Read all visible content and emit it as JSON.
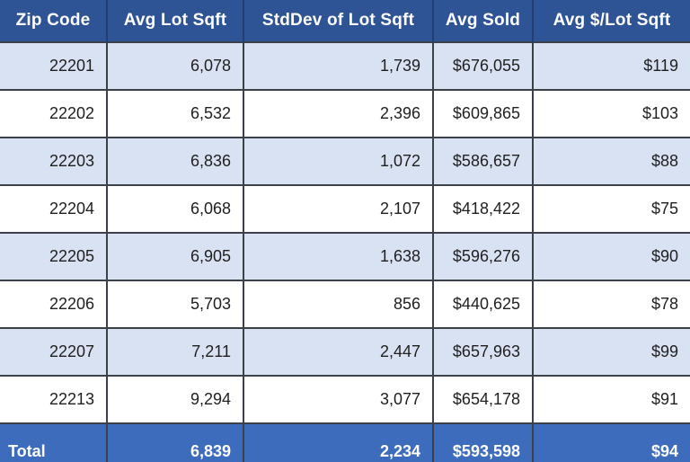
{
  "table": {
    "headers": [
      "Zip Code",
      "Avg Lot Sqft",
      "StdDev of Lot Sqft",
      "Avg Sold",
      "Avg $/Lot Sqft"
    ],
    "column_keys": [
      "zip-code",
      "avg-lot-sqft",
      "stddev-lot-sqft",
      "avg-sold",
      "avg-price-per-lot-sqft"
    ],
    "rows": [
      [
        "22201",
        "6,078",
        "1,739",
        "$676,055",
        "$119"
      ],
      [
        "22202",
        "6,532",
        "2,396",
        "$609,865",
        "$103"
      ],
      [
        "22203",
        "6,836",
        "1,072",
        "$586,657",
        "$88"
      ],
      [
        "22204",
        "6,068",
        "2,107",
        "$418,422",
        "$75"
      ],
      [
        "22205",
        "6,905",
        "1,638",
        "$596,276",
        "$90"
      ],
      [
        "22206",
        "5,703",
        "856",
        "$440,625",
        "$78"
      ],
      [
        "22207",
        "7,211",
        "2,447",
        "$657,963",
        "$99"
      ],
      [
        "22213",
        "9,294",
        "3,077",
        "$654,178",
        "$91"
      ]
    ],
    "total": [
      "Total",
      "6,839",
      "2,234",
      "$593,598",
      "$94"
    ]
  },
  "chart_data": {
    "type": "table",
    "title": "",
    "columns": [
      "Zip Code",
      "Avg Lot Sqft",
      "StdDev of Lot Sqft",
      "Avg Sold",
      "Avg $/Lot Sqft"
    ],
    "rows": [
      {
        "zip_code": "22201",
        "avg_lot_sqft": 6078,
        "stddev_of_lot_sqft": 1739,
        "avg_sold": 676055,
        "avg_price_per_lot_sqft": 119
      },
      {
        "zip_code": "22202",
        "avg_lot_sqft": 6532,
        "stddev_of_lot_sqft": 2396,
        "avg_sold": 609865,
        "avg_price_per_lot_sqft": 103
      },
      {
        "zip_code": "22203",
        "avg_lot_sqft": 6836,
        "stddev_of_lot_sqft": 1072,
        "avg_sold": 586657,
        "avg_price_per_lot_sqft": 88
      },
      {
        "zip_code": "22204",
        "avg_lot_sqft": 6068,
        "stddev_of_lot_sqft": 2107,
        "avg_sold": 418422,
        "avg_price_per_lot_sqft": 75
      },
      {
        "zip_code": "22205",
        "avg_lot_sqft": 6905,
        "stddev_of_lot_sqft": 1638,
        "avg_sold": 596276,
        "avg_price_per_lot_sqft": 90
      },
      {
        "zip_code": "22206",
        "avg_lot_sqft": 5703,
        "stddev_of_lot_sqft": 856,
        "avg_sold": 440625,
        "avg_price_per_lot_sqft": 78
      },
      {
        "zip_code": "22207",
        "avg_lot_sqft": 7211,
        "stddev_of_lot_sqft": 2447,
        "avg_sold": 657963,
        "avg_price_per_lot_sqft": 99
      },
      {
        "zip_code": "22213",
        "avg_lot_sqft": 9294,
        "stddev_of_lot_sqft": 3077,
        "avg_sold": 654178,
        "avg_price_per_lot_sqft": 91
      }
    ],
    "total_row": {
      "zip_code": "Total",
      "avg_lot_sqft": 6839,
      "stddev_of_lot_sqft": 2234,
      "avg_sold": 593598,
      "avg_price_per_lot_sqft": 94
    }
  },
  "colors": {
    "header_bg": "#2F5496",
    "header_text": "#FFFFFF",
    "band_bg": "#D9E2F3",
    "plain_bg": "#FFFFFF",
    "total_bg": "#3E6CBD",
    "body_text": "#1F1F1F",
    "grid": "#3C4049",
    "grid_header": "#22406F"
  }
}
